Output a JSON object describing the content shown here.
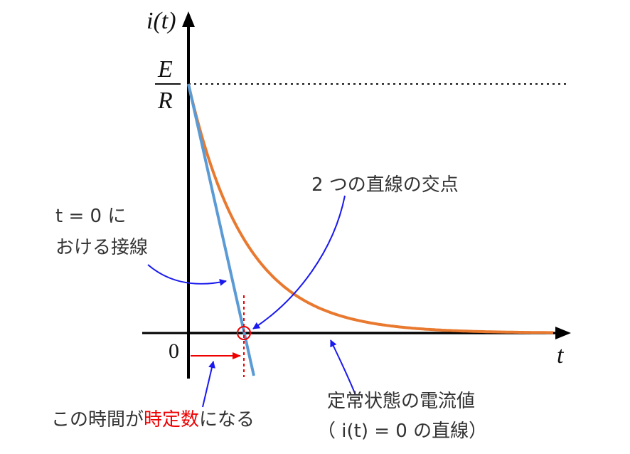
{
  "axes": {
    "y_label": "i(t)",
    "x_label": "t",
    "origin": "0",
    "y_level": {
      "numerator": "E",
      "denominator": "R"
    }
  },
  "annotations": {
    "intersection": "2 つの直線の交点",
    "tangent": [
      "t = 0 に",
      "おける接線"
    ],
    "time_constant": {
      "before": "この時間が",
      "highlight": "時定数",
      "after": "になる"
    },
    "steady_state": [
      "定常状態の電流値",
      "（ i(t) = 0 の直線）"
    ]
  }
}
